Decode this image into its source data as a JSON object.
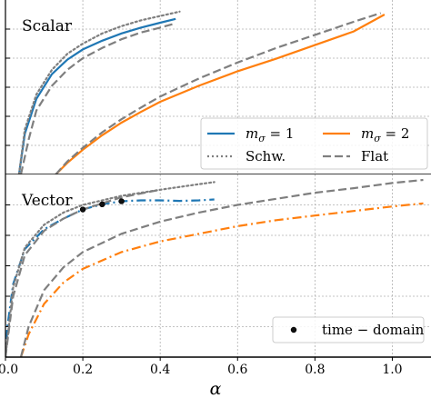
{
  "colors": {
    "blue": "#1f77b4",
    "orange": "#ff7f0e",
    "gray": "#7f7f7f",
    "grid": "#b0b0b0",
    "legend_border": "#cccccc"
  },
  "chart_data": [
    {
      "type": "line",
      "panel_label": "Scalar",
      "xlim": [
        0.0,
        1.1
      ],
      "xlabel": "",
      "grid": true,
      "legend": {
        "placement": "lower-right",
        "entries": [
          {
            "label": "m_σ = 1",
            "label_main": "m",
            "label_sub": "σ",
            "label_rest": " = 1",
            "color": "blue",
            "style": "solid"
          },
          {
            "label": "m_σ = 2",
            "label_main": "m",
            "label_sub": "σ",
            "label_rest": " = 2",
            "color": "orange",
            "style": "solid"
          },
          {
            "label": "Schw.",
            "color": "gray",
            "style": "dotted"
          },
          {
            "label": "Flat",
            "color": "gray",
            "style": "dashed"
          }
        ]
      },
      "series": [
        {
          "name": "m_σ = 1",
          "color": "blue",
          "style": "solid",
          "x": [
            0.035,
            0.05,
            0.08,
            0.12,
            0.16,
            0.2,
            0.25,
            0.3,
            0.35,
            0.4,
            0.44
          ],
          "y": [
            0.0,
            1.4,
            2.6,
            3.45,
            3.95,
            4.3,
            4.6,
            4.85,
            5.05,
            5.22,
            5.35
          ]
        },
        {
          "name": "m_σ = 2",
          "color": "orange",
          "style": "solid",
          "x": [
            0.13,
            0.16,
            0.2,
            0.25,
            0.3,
            0.35,
            0.4,
            0.5,
            0.6,
            0.7,
            0.8,
            0.9,
            0.98
          ],
          "y": [
            0.0,
            0.4,
            0.85,
            1.35,
            1.78,
            2.15,
            2.5,
            3.05,
            3.55,
            3.98,
            4.45,
            4.92,
            5.5
          ]
        },
        {
          "name": "Schw.",
          "color": "gray",
          "style": "dotted",
          "x": [
            0.035,
            0.05,
            0.08,
            0.12,
            0.16,
            0.2,
            0.25,
            0.3,
            0.35,
            0.4,
            0.45
          ],
          "y": [
            0.0,
            1.55,
            2.75,
            3.6,
            4.15,
            4.5,
            4.85,
            5.1,
            5.3,
            5.45,
            5.6
          ]
        },
        {
          "name": "Flat",
          "color": "gray",
          "style": "dashed",
          "x": [
            0.04,
            0.06,
            0.08,
            0.12,
            0.16,
            0.2,
            0.25,
            0.3,
            0.35,
            0.4,
            0.44
          ],
          "y": [
            0.0,
            1.2,
            2.2,
            3.05,
            3.6,
            4.0,
            4.35,
            4.65,
            4.88,
            5.05,
            5.2
          ]
        },
        {
          "name": "Flat (m_σ = 2)",
          "color": "gray",
          "style": "dashed",
          "x": [
            0.13,
            0.16,
            0.2,
            0.25,
            0.3,
            0.35,
            0.4,
            0.5,
            0.6,
            0.7,
            0.8,
            0.9,
            0.97
          ],
          "y": [
            0.0,
            0.45,
            0.92,
            1.45,
            1.9,
            2.3,
            2.68,
            3.3,
            3.85,
            4.35,
            4.8,
            5.25,
            5.55
          ]
        }
      ]
    },
    {
      "type": "line",
      "panel_label": "Vector",
      "xlim": [
        0.0,
        1.1
      ],
      "xlabel": "α",
      "x_tick_labels": [
        "0.0",
        "0.2",
        "0.4",
        "0.6",
        "0.8",
        "1.0"
      ],
      "x_ticks": [
        0.0,
        0.2,
        0.4,
        0.6,
        0.8,
        1.0
      ],
      "grid": true,
      "legend": {
        "placement": "lower-right",
        "entries": [
          {
            "label": "time − domain",
            "marker": "dot"
          }
        ]
      },
      "series": [
        {
          "name": "m_σ = 1",
          "color": "blue",
          "style": "dashdot",
          "x": [
            0.0,
            0.005,
            0.02,
            0.05,
            0.1,
            0.15,
            0.2,
            0.25,
            0.3,
            0.35,
            0.4,
            0.45,
            0.5,
            0.54
          ],
          "y": [
            0.0,
            1.0,
            2.4,
            3.55,
            4.2,
            4.55,
            4.85,
            5.02,
            5.12,
            5.15,
            5.15,
            5.13,
            5.15,
            5.18
          ]
        },
        {
          "name": "m_σ = 2",
          "color": "orange",
          "style": "dashdot",
          "x": [
            0.04,
            0.06,
            0.1,
            0.15,
            0.2,
            0.3,
            0.4,
            0.5,
            0.6,
            0.7,
            0.8,
            0.9,
            1.0,
            1.08
          ],
          "y": [
            0.0,
            0.75,
            1.75,
            2.45,
            2.9,
            3.45,
            3.8,
            4.05,
            4.3,
            4.5,
            4.65,
            4.8,
            4.95,
            5.05
          ]
        },
        {
          "name": "Schw.",
          "color": "gray",
          "style": "dotted",
          "x": [
            0.0,
            0.02,
            0.05,
            0.1,
            0.15,
            0.2,
            0.3,
            0.4,
            0.5,
            0.54
          ],
          "y": [
            0.0,
            2.3,
            3.6,
            4.35,
            4.75,
            5.0,
            5.3,
            5.5,
            5.68,
            5.75
          ]
        },
        {
          "name": "Flat",
          "color": "gray",
          "style": "dashed",
          "x": [
            0.0,
            0.02,
            0.05,
            0.1,
            0.15,
            0.2,
            0.3,
            0.4
          ],
          "y": [
            0.0,
            2.0,
            3.35,
            4.15,
            4.55,
            4.85,
            5.25,
            5.5
          ]
        },
        {
          "name": "Flat (m_σ = 2)",
          "color": "gray",
          "style": "dashed",
          "x": [
            0.04,
            0.06,
            0.1,
            0.15,
            0.2,
            0.3,
            0.4,
            0.5,
            0.6,
            0.7,
            0.8,
            0.9,
            1.0,
            1.08
          ],
          "y": [
            0.0,
            1.0,
            2.2,
            2.95,
            3.45,
            4.05,
            4.45,
            4.75,
            5.0,
            5.2,
            5.4,
            5.55,
            5.72,
            5.82
          ]
        }
      ],
      "markers": {
        "name": "time − domain",
        "x": [
          0.2,
          0.25,
          0.3
        ],
        "y": [
          4.85,
          5.02,
          5.12
        ]
      }
    }
  ]
}
